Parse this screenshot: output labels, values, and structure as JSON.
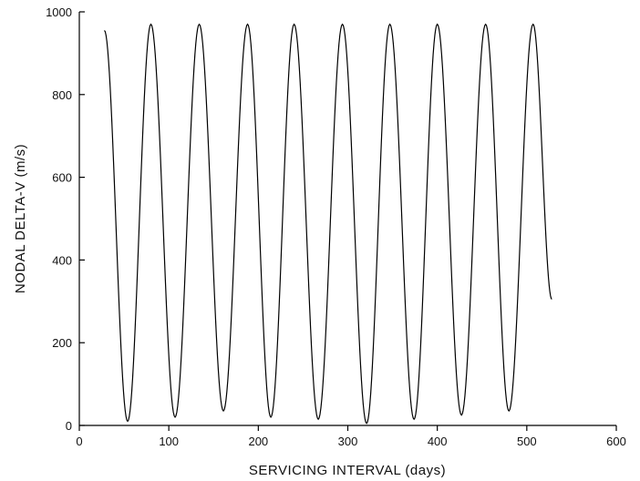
{
  "chart_data": {
    "type": "line",
    "title": "",
    "xlabel": "SERVICING INTERVAL (days)",
    "ylabel": "NODAL DELTA-V (m/s)",
    "xlim": [
      0,
      600
    ],
    "ylim": [
      0,
      1000
    ],
    "xticks": [
      0,
      100,
      200,
      300,
      400,
      500,
      600
    ],
    "yticks": [
      0,
      200,
      400,
      600,
      800,
      1000
    ],
    "grid": false,
    "legend": "none",
    "line_color": "#000000",
    "series": [
      {
        "name": "",
        "x": [
          28,
          54,
          80,
          107,
          134,
          161,
          188,
          214,
          240,
          267,
          294,
          321,
          347,
          374,
          400,
          427,
          454,
          480,
          507,
          528
        ],
        "y": [
          955,
          10,
          970,
          20,
          970,
          35,
          970,
          20,
          970,
          15,
          970,
          5,
          970,
          15,
          970,
          25,
          970,
          35,
          970,
          305
        ]
      }
    ]
  }
}
